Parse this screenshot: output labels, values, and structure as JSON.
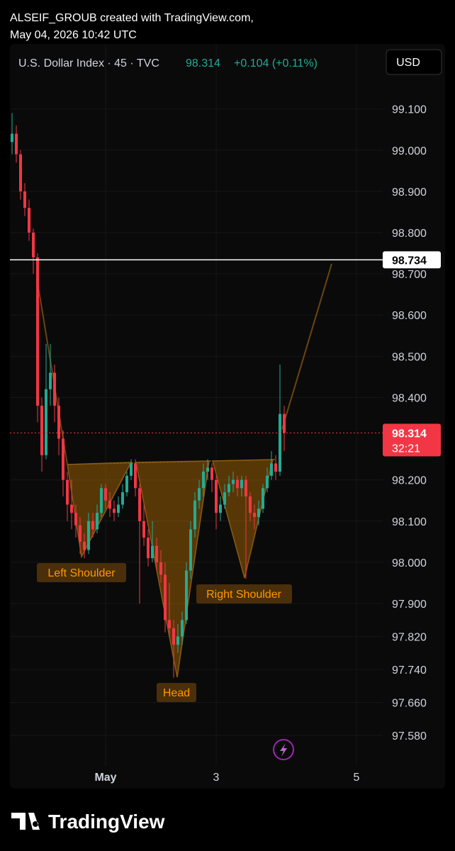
{
  "header": {
    "author_line": "ALSEIF_GROUB created with TradingView.com,",
    "timestamp": "May 04, 2026 10:42 UTC",
    "footer_logo": "TradingView"
  },
  "chart_data": {
    "type": "candlestick",
    "symbol": "U.S. Dollar Index · 45 · TVC",
    "change": "+0.104 (+0.11%)",
    "currency": "USD",
    "last_price": 98.314,
    "countdown": "32:21",
    "hline": 98.734,
    "annotations": [
      "Left Shoulder",
      "Head",
      "Right Shoulder"
    ],
    "up_color": "#22ab94",
    "down_color": "#f23645",
    "grid": true,
    "ylim": [
      97.506,
      99.244
    ],
    "yticks": [
      {
        "value": 99.1,
        "label": "99.100"
      },
      {
        "value": 99,
        "label": "99.000"
      },
      {
        "value": 98.9,
        "label": "98.900"
      },
      {
        "value": 98.8,
        "label": "98.800"
      },
      {
        "value": 98.7,
        "label": "98.700"
      },
      {
        "value": 98.6,
        "label": "98.600"
      },
      {
        "value": 98.5,
        "label": "98.500"
      },
      {
        "value": 98.4,
        "label": "98.400"
      },
      {
        "value": 98.2,
        "label": "98.200"
      },
      {
        "value": 98.1,
        "label": "98.100"
      },
      {
        "value": 98,
        "label": "98.000"
      },
      {
        "value": 97.9,
        "label": "97.900"
      },
      {
        "value": 97.82,
        "label": "97.820"
      },
      {
        "value": 97.74,
        "label": "97.740"
      },
      {
        "value": 97.66,
        "label": "97.660"
      },
      {
        "value": 97.58,
        "label": "97.580"
      }
    ],
    "categories": [
      null,
      null,
      null,
      null,
      null,
      null,
      null,
      null,
      null,
      null,
      null,
      null,
      null,
      null,
      null,
      null,
      null,
      null,
      null,
      null,
      null,
      null,
      "May",
      null,
      null,
      null,
      null,
      null,
      null,
      null,
      null,
      null,
      null,
      null,
      null,
      null,
      null,
      null,
      null,
      null,
      null,
      null,
      null,
      null,
      null,
      null,
      null,
      null,
      "3",
      null,
      null,
      null,
      null,
      null,
      null,
      null,
      null,
      null,
      null,
      null,
      null,
      null,
      null,
      null,
      null,
      null,
      null,
      null,
      null,
      null,
      null,
      null,
      null,
      null,
      null,
      null,
      null,
      null,
      null,
      null,
      null,
      "5",
      null,
      null,
      null,
      null,
      null,
      null
    ],
    "open": [
      99.02,
      99.04,
      98.99,
      98.9,
      98.86,
      98.8,
      98.74,
      98.38,
      98.26,
      98.42,
      98.46,
      98.38,
      98.3,
      98.2,
      98.14,
      98.12,
      98.09,
      98.05,
      98.03,
      98.1,
      98.08,
      98.12,
      98.18,
      98.15,
      98.13,
      98.12,
      98.14,
      98.17,
      98.21,
      98.24,
      98.18,
      98.1,
      98.06,
      98.01,
      98.04,
      98.0,
      97.97,
      97.86,
      97.84,
      97.8,
      97.82,
      97.86,
      97.98,
      98.08,
      98.15,
      98.18,
      98.22,
      98.23,
      98.2,
      98.12,
      98.14,
      98.17,
      98.19,
      98.2,
      98.18,
      98.2,
      98.16,
      98.12,
      98.11,
      98.13,
      98.18,
      98.21,
      98.24,
      98.22,
      98.36,
      null,
      null,
      null,
      null,
      null,
      null,
      null,
      null,
      null,
      null,
      null,
      null,
      null,
      null,
      null,
      null,
      null,
      null,
      null,
      null,
      null,
      null,
      null
    ],
    "high": [
      99.09,
      99.06,
      99.0,
      98.92,
      98.88,
      98.81,
      98.75,
      98.4,
      98.53,
      98.53,
      98.48,
      98.4,
      98.32,
      98.22,
      98.2,
      98.14,
      98.11,
      98.07,
      98.12,
      98.12,
      98.14,
      98.19,
      98.19,
      98.17,
      98.15,
      98.16,
      98.19,
      98.22,
      98.25,
      98.25,
      98.19,
      98.14,
      98.08,
      98.1,
      98.06,
      98.03,
      98.0,
      97.95,
      97.86,
      97.85,
      97.88,
      98.0,
      98.1,
      98.17,
      98.2,
      98.24,
      98.25,
      98.24,
      98.21,
      98.16,
      98.19,
      98.21,
      98.22,
      98.21,
      98.21,
      98.21,
      98.17,
      98.14,
      98.15,
      98.19,
      98.23,
      98.27,
      98.26,
      98.48,
      98.38,
      null,
      null,
      null,
      null,
      null,
      null,
      null,
      null,
      null,
      null,
      null,
      null,
      null,
      null,
      null,
      null,
      null,
      null,
      null,
      null,
      null,
      null,
      null
    ],
    "low": [
      98.99,
      98.97,
      98.88,
      98.84,
      98.78,
      98.7,
      98.34,
      98.22,
      98.25,
      98.38,
      98.34,
      98.26,
      98.16,
      98.1,
      98.08,
      98.06,
      98.02,
      98.01,
      98.02,
      98.06,
      98.07,
      98.11,
      98.13,
      98.11,
      98.1,
      98.11,
      98.13,
      98.16,
      98.2,
      98.16,
      97.9,
      98.04,
      97.99,
      98.0,
      97.98,
      97.95,
      97.83,
      97.82,
      97.72,
      97.78,
      97.8,
      97.85,
      97.96,
      98.06,
      98.13,
      98.16,
      98.2,
      98.17,
      98.08,
      98.1,
      98.13,
      98.16,
      98.17,
      98.16,
      98.16,
      97.96,
      98.1,
      98.08,
      98.09,
      98.12,
      98.17,
      98.2,
      98.2,
      98.21,
      98.27,
      null,
      null,
      null,
      null,
      null,
      null,
      null,
      null,
      null,
      null,
      null,
      null,
      null,
      null,
      null,
      null,
      null,
      null,
      null,
      null,
      null,
      null,
      null
    ],
    "close": [
      99.04,
      98.99,
      98.9,
      98.86,
      98.8,
      98.74,
      98.38,
      98.26,
      98.42,
      98.46,
      98.38,
      98.3,
      98.2,
      98.14,
      98.12,
      98.09,
      98.05,
      98.03,
      98.1,
      98.08,
      98.12,
      98.18,
      98.15,
      98.13,
      98.12,
      98.14,
      98.17,
      98.21,
      98.24,
      98.18,
      98.1,
      98.06,
      98.01,
      98.04,
      98.0,
      97.97,
      97.86,
      97.84,
      97.8,
      97.82,
      97.86,
      97.98,
      98.08,
      98.15,
      98.18,
      98.22,
      98.23,
      98.2,
      98.12,
      98.14,
      98.17,
      98.19,
      98.2,
      98.18,
      98.2,
      98.16,
      98.12,
      98.11,
      98.13,
      98.18,
      98.21,
      98.24,
      98.22,
      98.36,
      98.314,
      null,
      null,
      null,
      null,
      null,
      null,
      null,
      null,
      null,
      null,
      null,
      null,
      null,
      null,
      null,
      null,
      null,
      null,
      null,
      null,
      null,
      null,
      null
    ]
  }
}
